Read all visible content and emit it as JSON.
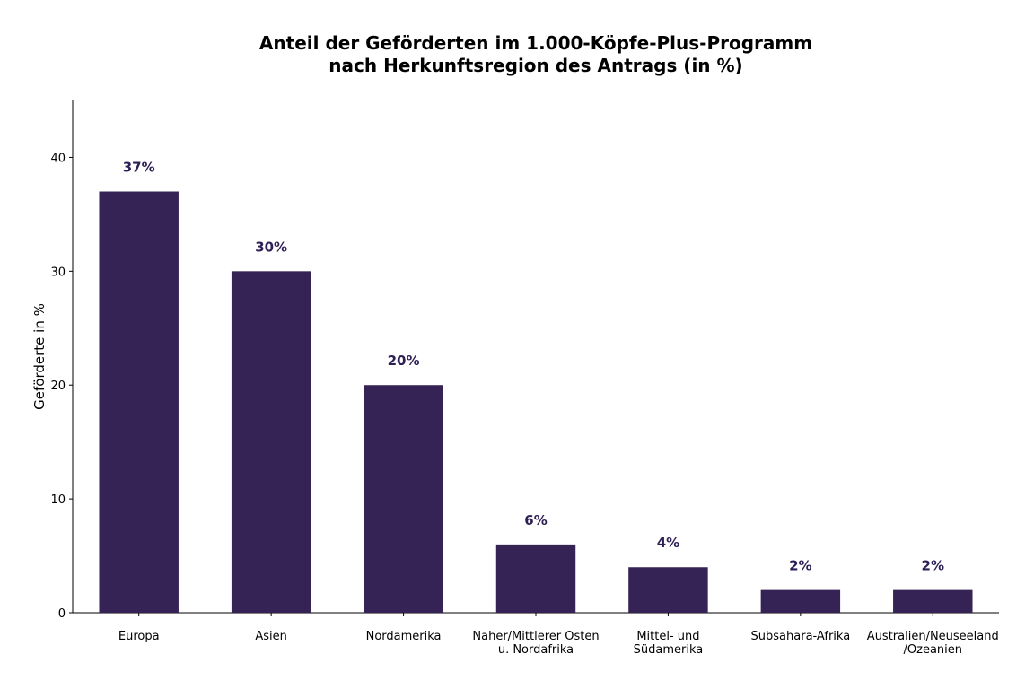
{
  "chart_data": {
    "type": "bar",
    "title_lines": [
      "Anteil der Geförderten im 1.000-Köpfe-Plus-Programm",
      "nach Herkunftsregion des Antrags (in %)"
    ],
    "xlabel": "",
    "ylabel": "Geförderte in %",
    "ylim": [
      0,
      45
    ],
    "yticks": [
      0,
      10,
      20,
      30,
      40
    ],
    "grid": false,
    "categories": [
      [
        "Europa"
      ],
      [
        "Asien"
      ],
      [
        "Nordamerika"
      ],
      [
        "Naher/Mittlerer Osten",
        "u. Nordafrika"
      ],
      [
        "Mittel- und",
        "Südamerika"
      ],
      [
        "Subsahara-Afrika"
      ],
      [
        "Australien/Neuseeland",
        "/Ozeanien"
      ]
    ],
    "values": [
      37,
      30,
      20,
      6,
      4,
      2,
      2
    ],
    "data_labels": [
      "37%",
      "30%",
      "20%",
      "6%",
      "4%",
      "2%",
      "2%"
    ],
    "bar_color": "#362356",
    "label_color": "#2e1f54"
  }
}
